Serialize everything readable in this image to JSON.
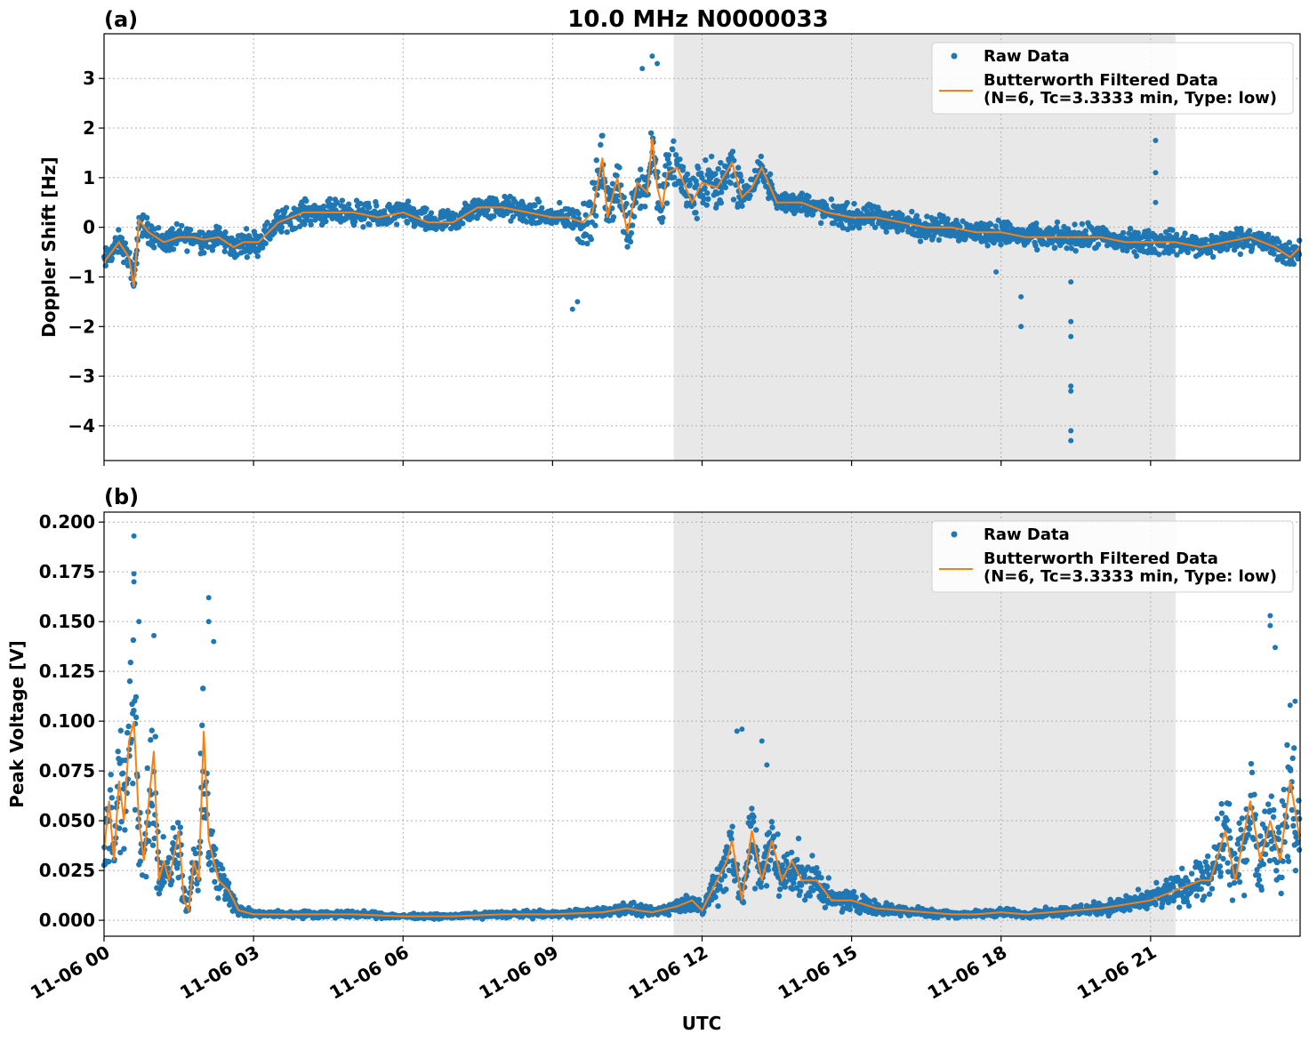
{
  "chart_data": {
    "title": "10.0 MHz N0000033",
    "xlabel": "UTC",
    "x_ticks": [
      "11-06 00",
      "11-06 03",
      "11-06 06",
      "11-06 09",
      "11-06 12",
      "11-06 15",
      "11-06 18",
      "11-06 21"
    ],
    "xlim_hours": [
      0,
      24
    ],
    "shaded_interval_hours": [
      11.43,
      21.5
    ],
    "colors": {
      "raw": "#1f77b4",
      "filtered": "#ff7f0e",
      "shade": "#e8e8e8"
    },
    "panels": [
      {
        "label": "(a)",
        "type": "scatter+line",
        "ylabel": "Doppler Shift [Hz]",
        "ylim": [
          -4.7,
          3.9
        ],
        "yticks": [
          3,
          2,
          1,
          0,
          -1,
          -2,
          -3,
          -4
        ],
        "ytick_labels": [
          "3",
          "2",
          "1",
          "0",
          "−1",
          "−2",
          "−3",
          "−4"
        ],
        "grid": true,
        "legend_position": "top-right",
        "series": [
          {
            "name": "Raw Data",
            "kind": "scatter"
          },
          {
            "name": "Butterworth Filtered Data",
            "name_line2": "(N=6, Tc=3.3333 min, Type: low)",
            "kind": "line"
          }
        ],
        "filtered_x_hours": [
          0,
          0.3,
          0.5,
          0.6,
          0.7,
          0.9,
          1.2,
          1.5,
          1.8,
          2.0,
          2.3,
          2.6,
          2.8,
          3.1,
          3.5,
          4.0,
          4.5,
          5.0,
          5.5,
          6.0,
          6.5,
          7.0,
          7.5,
          8.0,
          8.5,
          9.0,
          9.3,
          9.6,
          9.8,
          10.0,
          10.1,
          10.3,
          10.5,
          10.7,
          10.9,
          11.0,
          11.1,
          11.2,
          11.3,
          11.5,
          11.8,
          12.0,
          12.3,
          12.6,
          12.8,
          13.0,
          13.2,
          13.5,
          14.0,
          14.5,
          15.0,
          15.5,
          16.0,
          16.5,
          17.0,
          17.5,
          18.0,
          18.5,
          19.0,
          19.5,
          20.0,
          20.5,
          21.0,
          21.5,
          22.0,
          22.5,
          23.0,
          23.5,
          23.8,
          24.0
        ],
        "filtered_y": [
          -0.7,
          -0.3,
          -0.6,
          -1.2,
          0.15,
          -0.1,
          -0.3,
          -0.2,
          -0.2,
          -0.25,
          -0.2,
          -0.4,
          -0.3,
          -0.3,
          0.1,
          0.3,
          0.3,
          0.3,
          0.2,
          0.3,
          0.1,
          0.1,
          0.4,
          0.4,
          0.3,
          0.2,
          0.2,
          0.1,
          0.3,
          1.4,
          0.2,
          1.0,
          -0.1,
          0.9,
          0.7,
          1.8,
          0.8,
          0.4,
          1.1,
          1.2,
          0.5,
          0.9,
          0.8,
          1.3,
          0.6,
          0.8,
          1.2,
          0.5,
          0.5,
          0.3,
          0.2,
          0.2,
          0.1,
          0.0,
          0.0,
          -0.1,
          -0.1,
          -0.2,
          -0.2,
          -0.2,
          -0.2,
          -0.3,
          -0.3,
          -0.3,
          -0.4,
          -0.3,
          -0.2,
          -0.4,
          -0.6,
          -0.4
        ],
        "outliers_x_hours": [
          9.4,
          9.5,
          10.8,
          11.0,
          11.1,
          17.9,
          18.4,
          18.4,
          19.4,
          19.4,
          19.4,
          19.4,
          19.4,
          19.4,
          19.4,
          21.1,
          21.1,
          21.1
        ],
        "outliers_y": [
          -1.65,
          -1.5,
          3.2,
          3.45,
          3.3,
          -0.9,
          -1.4,
          -2.0,
          -4.3,
          -4.1,
          -3.3,
          -3.2,
          -2.2,
          -1.9,
          -1.1,
          1.75,
          1.1,
          0.5
        ]
      },
      {
        "label": "(b)",
        "type": "scatter+line",
        "ylabel": "Peak Voltage [V]",
        "ylim": [
          -0.008,
          0.205
        ],
        "yticks": [
          0.2,
          0.175,
          0.15,
          0.125,
          0.1,
          0.075,
          0.05,
          0.025,
          0.0
        ],
        "ytick_labels": [
          "0.200",
          "0.175",
          "0.150",
          "0.125",
          "0.100",
          "0.075",
          "0.050",
          "0.025",
          "0.000"
        ],
        "grid": true,
        "legend_position": "top-right",
        "series": [
          {
            "name": "Raw Data",
            "kind": "scatter"
          },
          {
            "name": "Butterworth Filtered Data",
            "name_line2": "(N=6, Tc=3.3333 min, Type: low)",
            "kind": "line"
          }
        ],
        "filtered_x_hours": [
          0,
          0.1,
          0.2,
          0.3,
          0.4,
          0.5,
          0.6,
          0.7,
          0.8,
          0.9,
          1.0,
          1.1,
          1.2,
          1.3,
          1.5,
          1.6,
          1.7,
          1.8,
          1.9,
          2.0,
          2.1,
          2.3,
          2.5,
          2.7,
          3.0,
          4.0,
          5.0,
          6.0,
          7.0,
          8.0,
          9.0,
          10.0,
          10.5,
          10.7,
          11.0,
          11.5,
          11.8,
          12.0,
          12.3,
          12.5,
          12.6,
          12.8,
          13.0,
          13.2,
          13.4,
          13.6,
          13.8,
          14.0,
          14.3,
          14.6,
          15.0,
          15.5,
          16.0,
          16.5,
          17.0,
          17.5,
          18.0,
          18.5,
          19.0,
          19.5,
          20.0,
          20.5,
          21.0,
          21.5,
          22.0,
          22.2,
          22.5,
          22.7,
          23.0,
          23.2,
          23.4,
          23.6,
          23.8,
          24.0
        ],
        "filtered_y": [
          0.035,
          0.06,
          0.03,
          0.07,
          0.05,
          0.09,
          0.1,
          0.05,
          0.03,
          0.06,
          0.085,
          0.02,
          0.03,
          0.02,
          0.045,
          0.01,
          0.005,
          0.03,
          0.02,
          0.095,
          0.04,
          0.02,
          0.015,
          0.005,
          0.003,
          0.003,
          0.003,
          0.002,
          0.002,
          0.003,
          0.003,
          0.004,
          0.006,
          0.005,
          0.004,
          0.007,
          0.01,
          0.005,
          0.02,
          0.03,
          0.04,
          0.01,
          0.045,
          0.02,
          0.04,
          0.02,
          0.03,
          0.02,
          0.02,
          0.01,
          0.01,
          0.006,
          0.005,
          0.004,
          0.003,
          0.003,
          0.004,
          0.003,
          0.004,
          0.005,
          0.006,
          0.008,
          0.01,
          0.015,
          0.02,
          0.02,
          0.045,
          0.02,
          0.06,
          0.03,
          0.05,
          0.03,
          0.07,
          0.04
        ],
        "outliers_x_hours": [
          0.6,
          0.6,
          0.6,
          0.7,
          2.1,
          2.1,
          2.2,
          1.0,
          12.7,
          12.8,
          13.3,
          13.2,
          23.4,
          23.4,
          23.5,
          23.9,
          23.8
        ],
        "outliers_y": [
          0.193,
          0.174,
          0.17,
          0.15,
          0.162,
          0.15,
          0.14,
          0.143,
          0.095,
          0.096,
          0.078,
          0.09,
          0.153,
          0.148,
          0.137,
          0.11,
          0.108
        ]
      }
    ]
  }
}
